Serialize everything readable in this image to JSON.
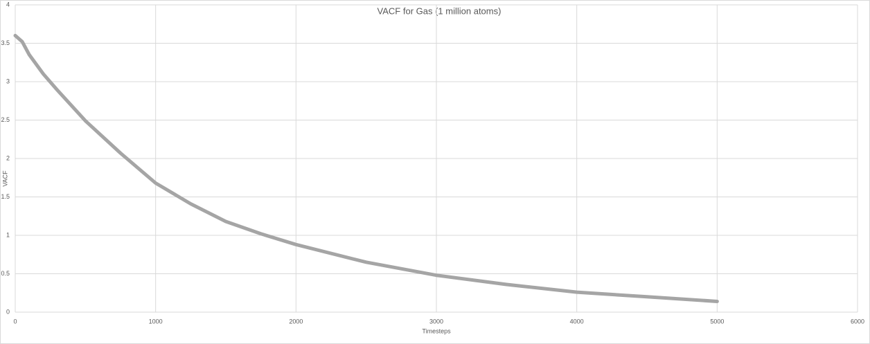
{
  "chart_data": {
    "type": "line",
    "title": "VACF for Gas (1 million atoms)",
    "x_label": "Timesteps",
    "y_label": "VACF",
    "x": [
      0,
      50,
      100,
      200,
      300,
      500,
      750,
      1000,
      1250,
      1500,
      1750,
      2000,
      2500,
      3000,
      3500,
      4000,
      4500,
      5000
    ],
    "values": [
      3.6,
      3.52,
      3.35,
      3.1,
      2.89,
      2.49,
      2.07,
      1.68,
      1.41,
      1.18,
      1.02,
      0.88,
      0.65,
      0.48,
      0.36,
      0.26,
      0.2,
      0.14
    ],
    "color": "#a5a5a5",
    "xlim": [
      0,
      6000
    ],
    "xticks": [
      0,
      1000,
      2000,
      3000,
      4000,
      5000,
      6000
    ],
    "ylim": [
      0,
      4
    ],
    "yticks": [
      0,
      0.5,
      1,
      1.5,
      2,
      2.5,
      3,
      3.5,
      4
    ],
    "grid": true
  }
}
